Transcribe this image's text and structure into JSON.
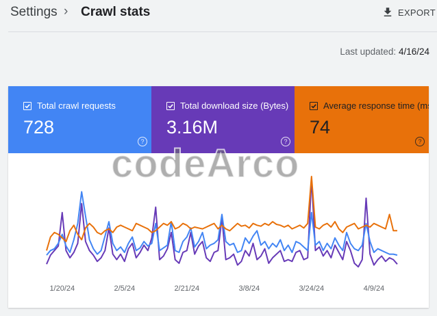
{
  "breadcrumb": {
    "root": "Settings",
    "separator": "›",
    "current": "Crawl stats"
  },
  "export": {
    "label": "EXPORT",
    "icon": "download-icon"
  },
  "last_updated": {
    "label": "Last updated:",
    "date": "4/16/24"
  },
  "metrics": [
    {
      "label": "Total crawl requests",
      "value": "728",
      "color": "#4285f4",
      "checked": true
    },
    {
      "label": "Total download size (Bytes)",
      "value": "3.16M",
      "color": "#673ab7",
      "checked": true
    },
    {
      "label": "Average response time (ms)",
      "value": "74",
      "color": "#e8710a",
      "checked": true
    }
  ],
  "watermark": "codeArco",
  "chart_data": {
    "type": "line",
    "x_tick_labels": [
      "1/20/24",
      "2/5/24",
      "2/21/24",
      "3/8/24",
      "3/24/24",
      "4/9/24"
    ],
    "x_tick_index": [
      4,
      20,
      36,
      52,
      68,
      84
    ],
    "y_axis_labels_visible": false,
    "series": [
      {
        "name": "Total crawl requests",
        "color": "#4285f4",
        "values": [
          25,
          30,
          32,
          38,
          48,
          35,
          28,
          42,
          60,
          95,
          68,
          42,
          32,
          26,
          30,
          46,
          62,
          38,
          30,
          34,
          28,
          38,
          45,
          30,
          33,
          40,
          35,
          38,
          60,
          30,
          33,
          36,
          62,
          30,
          28,
          40,
          45,
          55,
          34,
          40,
          50,
          32,
          36,
          38,
          42,
          70,
          40,
          36,
          38,
          28,
          30,
          44,
          38,
          46,
          52,
          36,
          40,
          32,
          38,
          34,
          42,
          30,
          36,
          28,
          40,
          38,
          34,
          30,
          72,
          36,
          40,
          30,
          38,
          32,
          44,
          36,
          30,
          50,
          38,
          32,
          30,
          36,
          60,
          40,
          28,
          32,
          30,
          28,
          26,
          26,
          25
        ]
      },
      {
        "name": "Total download size (Bytes)",
        "color": "#673ab7",
        "values": [
          15,
          25,
          30,
          35,
          72,
          30,
          22,
          28,
          38,
          82,
          40,
          30,
          25,
          18,
          22,
          30,
          55,
          26,
          20,
          26,
          18,
          32,
          38,
          22,
          28,
          36,
          30,
          44,
          78,
          20,
          24,
          32,
          50,
          20,
          16,
          28,
          30,
          50,
          26,
          35,
          40,
          22,
          18,
          28,
          30,
          66,
          20,
          22,
          26,
          14,
          18,
          30,
          24,
          38,
          20,
          24,
          32,
          16,
          22,
          26,
          30,
          18,
          20,
          18,
          28,
          30,
          20,
          22,
          110,
          30,
          34,
          24,
          30,
          22,
          36,
          28,
          20,
          40,
          30,
          16,
          12,
          20,
          88,
          26,
          14,
          20,
          24,
          18,
          22,
          20,
          15
        ]
      },
      {
        "name": "Average response time (ms)",
        "color": "#e8710a",
        "values": [
          30,
          45,
          50,
          48,
          44,
          40,
          52,
          58,
          48,
          42,
          55,
          60,
          56,
          50,
          48,
          52,
          54,
          50,
          56,
          58,
          56,
          54,
          52,
          60,
          58,
          56,
          54,
          50,
          52,
          56,
          60,
          58,
          62,
          54,
          56,
          60,
          58,
          54,
          56,
          55,
          54,
          56,
          58,
          60,
          54,
          58,
          54,
          52,
          56,
          60,
          57,
          58,
          55,
          60,
          58,
          57,
          60,
          58,
          62,
          59,
          58,
          56,
          58,
          54,
          56,
          58,
          55,
          60,
          112,
          56,
          54,
          58,
          60,
          56,
          62,
          54,
          50,
          56,
          58,
          60,
          54,
          56,
          58,
          56,
          60,
          58,
          56,
          54,
          70,
          52,
          52
        ]
      }
    ],
    "grid": false,
    "legend": "top (metric cards)"
  }
}
